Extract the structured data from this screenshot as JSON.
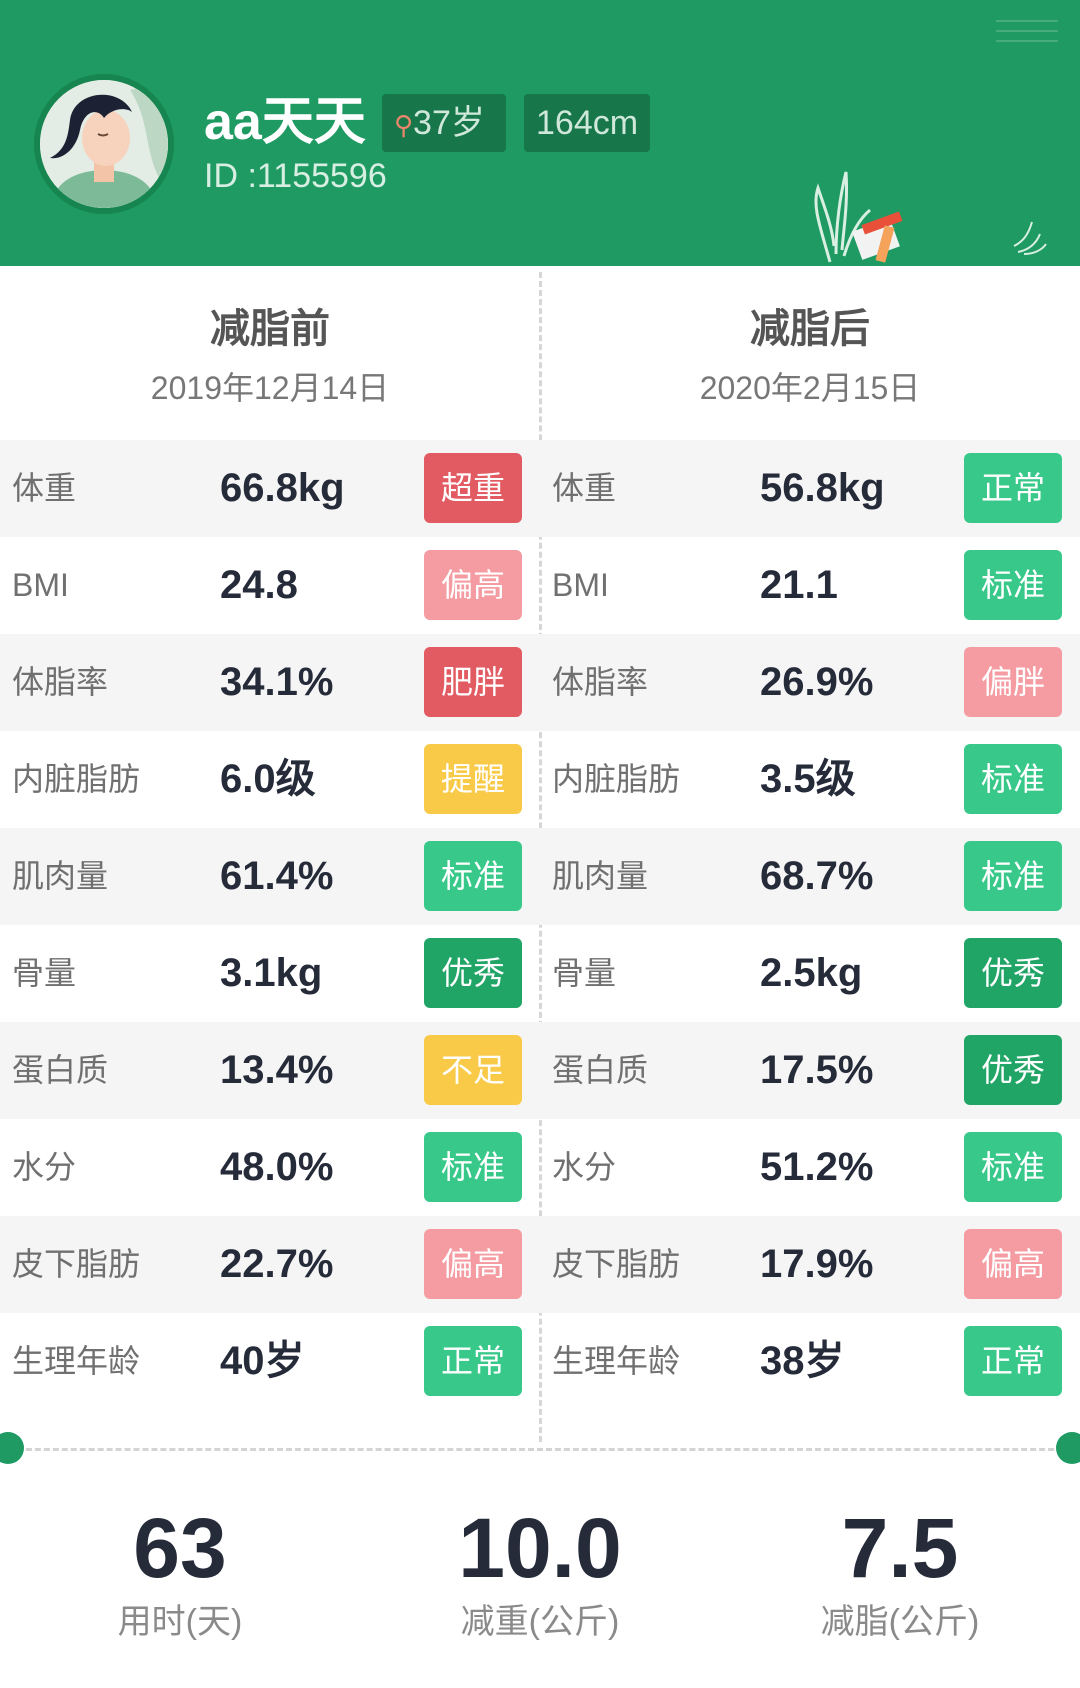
{
  "profile": {
    "name": "aa天天",
    "age": "37岁",
    "height": "164cm",
    "id": "ID :1155596"
  },
  "columns": [
    {
      "title": "减脂前",
      "date": "2019年12月14日"
    },
    {
      "title": "减脂后",
      "date": "2020年2月15日"
    }
  ],
  "status_colors": {
    "red": "#e35b62",
    "pink": "#f49ca2",
    "yellow": "#f9c948",
    "green": "#38c98a",
    "dark_green": "#21a566"
  },
  "rows": [
    {
      "label": "体重",
      "before": {
        "value": "66.8kg",
        "status": "超重",
        "color": "red"
      },
      "after": {
        "value": "56.8kg",
        "status": "正常",
        "color": "green"
      }
    },
    {
      "label": "BMI",
      "before": {
        "value": "24.8",
        "status": "偏高",
        "color": "pink"
      },
      "after": {
        "value": "21.1",
        "status": "标准",
        "color": "green"
      }
    },
    {
      "label": "体脂率",
      "before": {
        "value": "34.1%",
        "status": "肥胖",
        "color": "red"
      },
      "after": {
        "value": "26.9%",
        "status": "偏胖",
        "color": "pink"
      }
    },
    {
      "label": "内脏脂肪",
      "before": {
        "value": "6.0级",
        "status": "提醒",
        "color": "yellow"
      },
      "after": {
        "value": "3.5级",
        "status": "标准",
        "color": "green"
      }
    },
    {
      "label": "肌肉量",
      "before": {
        "value": "61.4%",
        "status": "标准",
        "color": "green"
      },
      "after": {
        "value": "68.7%",
        "status": "标准",
        "color": "green"
      }
    },
    {
      "label": "骨量",
      "before": {
        "value": "3.1kg",
        "status": "优秀",
        "color": "dark_green"
      },
      "after": {
        "value": "2.5kg",
        "status": "优秀",
        "color": "dark_green"
      }
    },
    {
      "label": "蛋白质",
      "before": {
        "value": "13.4%",
        "status": "不足",
        "color": "yellow"
      },
      "after": {
        "value": "17.5%",
        "status": "优秀",
        "color": "dark_green"
      }
    },
    {
      "label": "水分",
      "before": {
        "value": "48.0%",
        "status": "标准",
        "color": "green"
      },
      "after": {
        "value": "51.2%",
        "status": "标准",
        "color": "green"
      }
    },
    {
      "label": "皮下脂肪",
      "before": {
        "value": "22.7%",
        "status": "偏高",
        "color": "pink"
      },
      "after": {
        "value": "17.9%",
        "status": "偏高",
        "color": "pink"
      }
    },
    {
      "label": "生理年龄",
      "before": {
        "value": "40岁",
        "status": "正常",
        "color": "green"
      },
      "after": {
        "value": "38岁",
        "status": "正常",
        "color": "green"
      }
    }
  ],
  "summary": [
    {
      "value": "63",
      "label": "用时(天)"
    },
    {
      "value": "10.0",
      "label": "减重(公斤)"
    },
    {
      "value": "7.5",
      "label": "减脂(公斤)"
    }
  ],
  "icons": [
    "avatar",
    "gender-female-icon",
    "menu-icon",
    "plant-scale-illustration",
    "sparkle-icon"
  ]
}
